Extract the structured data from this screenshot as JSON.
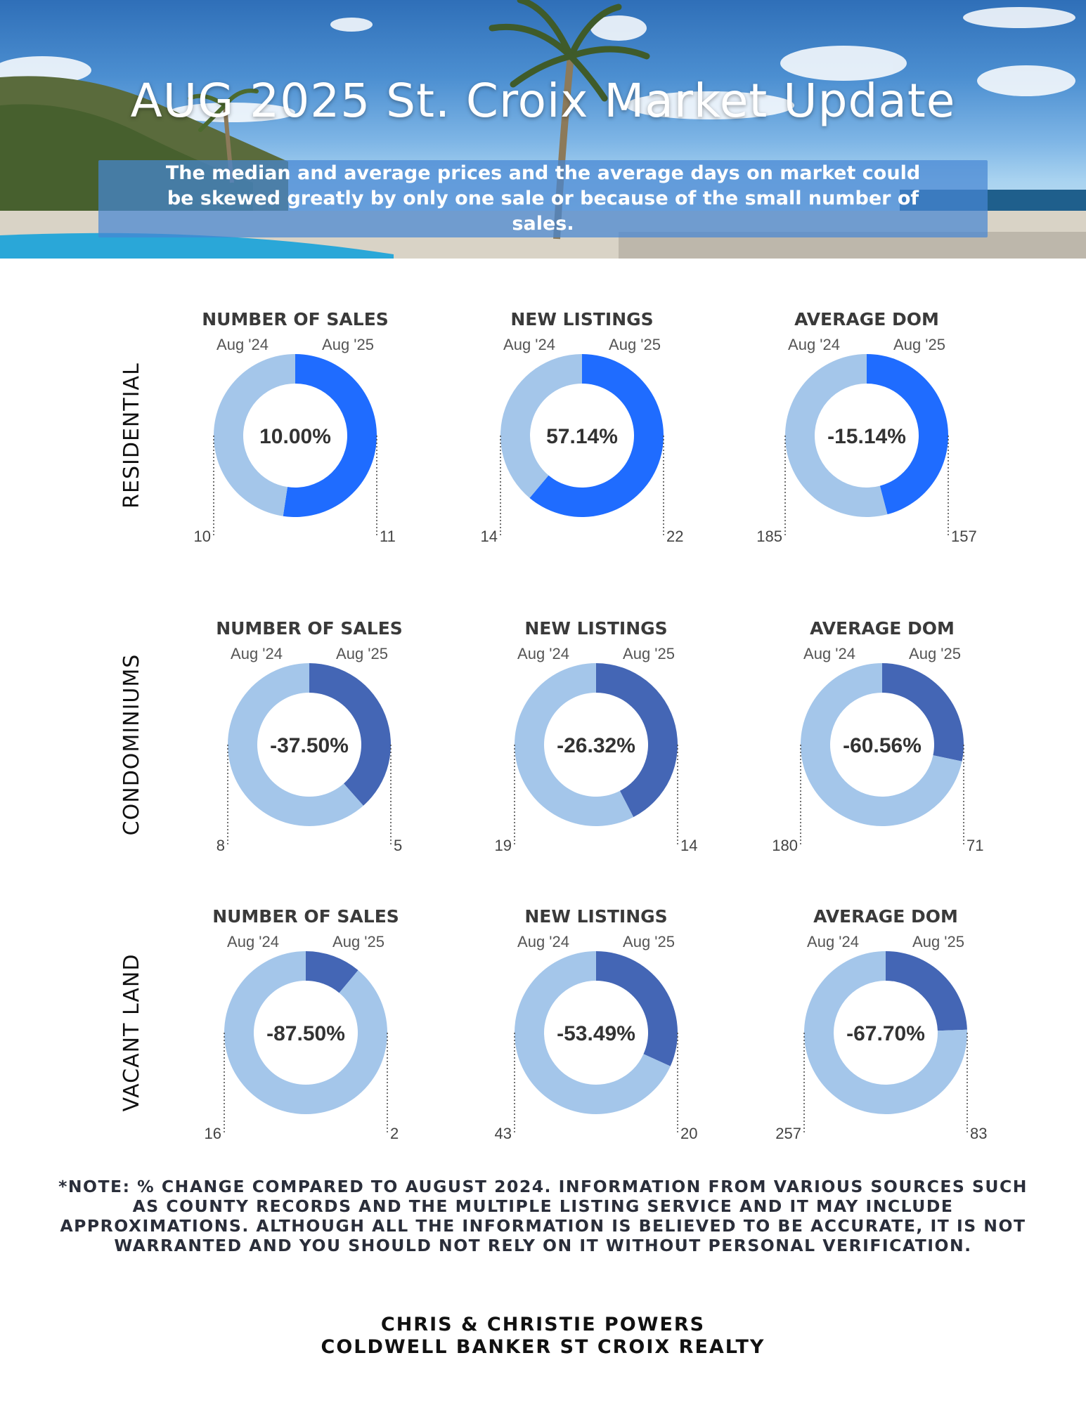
{
  "header": {
    "title": "AUG 2025 St. Croix Market Update",
    "subtitle": "The median and average prices and  the average days on market could be skewed greatly by only one sale or because of the small number of sales."
  },
  "footer": {
    "note": "*NOTE: % CHANGE COMPARED TO AUGUST 2024. INFORMATION FROM VARIOUS SOURCES SUCH AS COUNTY RECORDS AND THE MULTIPLE LISTING SERVICE AND IT MAY INCLUDE APPROXIMATIONS. ALTHOUGH ALL THE INFORMATION IS BELIEVED TO BE ACCURATE, IT IS NOT WARRANTED AND YOU SHOULD NOT RELY ON IT WITHOUT PERSONAL VERIFICATION.",
    "agent": "CHRIS & CHRISTIE POWERS",
    "brokerage": "COLDWELL BANKER ST CROIX REALTY"
  },
  "colors": {
    "prior": "#a4c6ea",
    "residential_current": "#1f6cff",
    "other_current": "#4466b5"
  },
  "rows": [
    {
      "label": "RESIDENTIAL",
      "color": "#1f6cff"
    },
    {
      "label": "CONDOMINIUMS",
      "color": "#4466b5"
    },
    {
      "label": "VACANT LAND",
      "color": "#4466b5"
    }
  ],
  "chart_data": [
    {
      "type": "pie",
      "row": "RESIDENTIAL",
      "title": "NUMBER OF SALES",
      "categories": [
        "Aug '24",
        "Aug '25"
      ],
      "values": [
        10,
        11
      ],
      "center_label": "10.00%"
    },
    {
      "type": "pie",
      "row": "RESIDENTIAL",
      "title": "NEW LISTINGS",
      "categories": [
        "Aug '24",
        "Aug '25"
      ],
      "values": [
        14,
        22
      ],
      "center_label": "57.14%"
    },
    {
      "type": "pie",
      "row": "RESIDENTIAL",
      "title": "AVERAGE DOM",
      "categories": [
        "Aug '24",
        "Aug '25"
      ],
      "values": [
        185,
        157
      ],
      "center_label": "-15.14%"
    },
    {
      "type": "pie",
      "row": "CONDOMINIUMS",
      "title": "NUMBER OF SALES",
      "categories": [
        "Aug '24",
        "Aug '25"
      ],
      "values": [
        8,
        5
      ],
      "center_label": "-37.50%"
    },
    {
      "type": "pie",
      "row": "CONDOMINIUMS",
      "title": "NEW LISTINGS",
      "categories": [
        "Aug '24",
        "Aug '25"
      ],
      "values": [
        19,
        14
      ],
      "center_label": "-26.32%"
    },
    {
      "type": "pie",
      "row": "CONDOMINIUMS",
      "title": "AVERAGE DOM",
      "categories": [
        "Aug '24",
        "Aug '25"
      ],
      "values": [
        180,
        71
      ],
      "center_label": "-60.56%"
    },
    {
      "type": "pie",
      "row": "VACANT LAND",
      "title": "NUMBER OF SALES",
      "categories": [
        "Aug '24",
        "Aug '25"
      ],
      "values": [
        16,
        2
      ],
      "center_label": "-87.50%"
    },
    {
      "type": "pie",
      "row": "VACANT LAND",
      "title": "NEW LISTINGS",
      "categories": [
        "Aug '24",
        "Aug '25"
      ],
      "values": [
        43,
        20
      ],
      "center_label": "-53.49%"
    },
    {
      "type": "pie",
      "row": "VACANT LAND",
      "title": "AVERAGE DOM",
      "categories": [
        "Aug '24",
        "Aug '25"
      ],
      "values": [
        257,
        83
      ],
      "center_label": "-67.70%"
    }
  ]
}
